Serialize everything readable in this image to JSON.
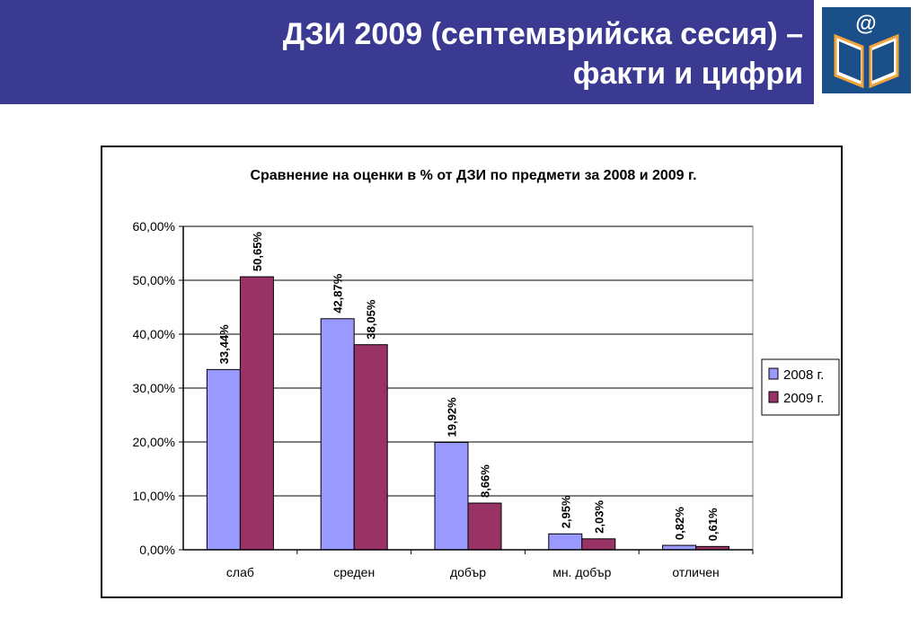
{
  "slide": {
    "title_line1": "ДЗИ 2009 (септемврийска сесия) –",
    "title_line2": "факти и цифри"
  },
  "colors": {
    "header_bg": "#3a3a92",
    "series_2008": "#9999ff",
    "series_2009": "#993366",
    "logo_blue": "#1a4f8a"
  },
  "icons": {
    "logo": "open-book-at-icon"
  },
  "chart_data": {
    "type": "bar",
    "title": "Сравнение на оценки в %  от ДЗИ по предмети за 2008 и 2009 г.",
    "categories": [
      "слаб",
      "среден",
      "добър",
      "мн. добър",
      "отличен"
    ],
    "series": [
      {
        "name": "2008 г.",
        "values": [
          33.44,
          42.87,
          19.92,
          2.95,
          0.82
        ],
        "labels": [
          "33,44%",
          "42,87%",
          "19,92%",
          "2,95%",
          "0,82%"
        ]
      },
      {
        "name": "2009 г.",
        "values": [
          50.65,
          38.05,
          8.66,
          2.03,
          0.61
        ],
        "labels": [
          "50,65%",
          "38,05%",
          "8,66%",
          "2,03%",
          "0,61%"
        ]
      }
    ],
    "ylim": [
      0,
      60
    ],
    "yticks": [
      0,
      10,
      20,
      30,
      40,
      50,
      60
    ],
    "ytick_labels": [
      "0,00%",
      "10,00%",
      "20,00%",
      "30,00%",
      "40,00%",
      "50,00%",
      "60,00%"
    ],
    "grid": true,
    "legend": "right",
    "xlabel": "",
    "ylabel": ""
  }
}
